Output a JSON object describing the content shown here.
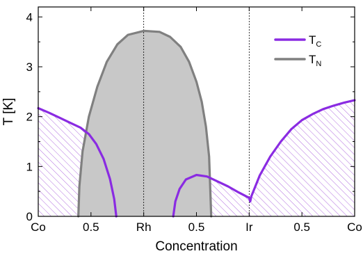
{
  "chart_data": {
    "type": "area",
    "xlabel": "Concentration",
    "ylabel": "T [K]",
    "ylim": [
      0,
      4.2
    ],
    "x_tick_labels": [
      "Co",
      "0.5",
      "Rh",
      "0.5",
      "Ir",
      "0.5",
      "Co"
    ],
    "y_tick_labels": [
      "0",
      "1",
      "2",
      "3",
      "4"
    ],
    "x_position_note": "x axis spans Co(0) -> Rh(1) -> Ir(2) -> Co(3) in composition units",
    "vertical_reference_lines_at": [
      1,
      2
    ],
    "legend": [
      {
        "label": "T",
        "subscript": "C",
        "color": "#8a2be2"
      },
      {
        "label": "T",
        "subscript": "N",
        "color": "#808080"
      }
    ],
    "series": [
      {
        "name": "TC",
        "color": "#8a2be2",
        "fill": "hatched",
        "segments": [
          [
            [
              0,
              2.17
            ],
            [
              0.1,
              2.08
            ],
            [
              0.2,
              1.98
            ],
            [
              0.3,
              1.88
            ],
            [
              0.4,
              1.78
            ],
            [
              0.48,
              1.65
            ],
            [
              0.55,
              1.45
            ],
            [
              0.62,
              1.15
            ],
            [
              0.68,
              0.75
            ],
            [
              0.72,
              0.35
            ],
            [
              0.74,
              0
            ]
          ],
          [
            [
              1.28,
              0
            ],
            [
              1.3,
              0.3
            ],
            [
              1.34,
              0.55
            ],
            [
              1.4,
              0.74
            ],
            [
              1.5,
              0.83
            ],
            [
              1.6,
              0.8
            ],
            [
              1.7,
              0.7
            ],
            [
              1.8,
              0.6
            ],
            [
              1.9,
              0.48
            ],
            [
              2,
              0.37
            ],
            [
              2.01,
              0.3
            ],
            [
              2.02,
              0.4
            ],
            [
              2.1,
              0.82
            ],
            [
              2.2,
              1.2
            ],
            [
              2.3,
              1.5
            ],
            [
              2.4,
              1.75
            ],
            [
              2.5,
              1.93
            ],
            [
              2.6,
              2.05
            ],
            [
              2.7,
              2.15
            ],
            [
              2.8,
              2.22
            ],
            [
              2.9,
              2.28
            ],
            [
              3,
              2.33
            ]
          ]
        ]
      },
      {
        "name": "TN",
        "color": "#808080",
        "fill": "#c8c8c8",
        "segments": [
          [
            [
              0.38,
              0
            ],
            [
              0.39,
              0.6
            ],
            [
              0.42,
              1.3
            ],
            [
              0.48,
              2
            ],
            [
              0.56,
              2.6
            ],
            [
              0.65,
              3.1
            ],
            [
              0.75,
              3.45
            ],
            [
              0.85,
              3.64
            ],
            [
              1,
              3.72
            ],
            [
              1.15,
              3.7
            ],
            [
              1.25,
              3.6
            ],
            [
              1.35,
              3.4
            ],
            [
              1.43,
              3.1
            ],
            [
              1.5,
              2.7
            ],
            [
              1.55,
              2.3
            ],
            [
              1.59,
              1.8
            ],
            [
              1.62,
              1.2
            ],
            [
              1.63,
              0.6
            ],
            [
              1.64,
              0
            ]
          ]
        ]
      }
    ]
  }
}
